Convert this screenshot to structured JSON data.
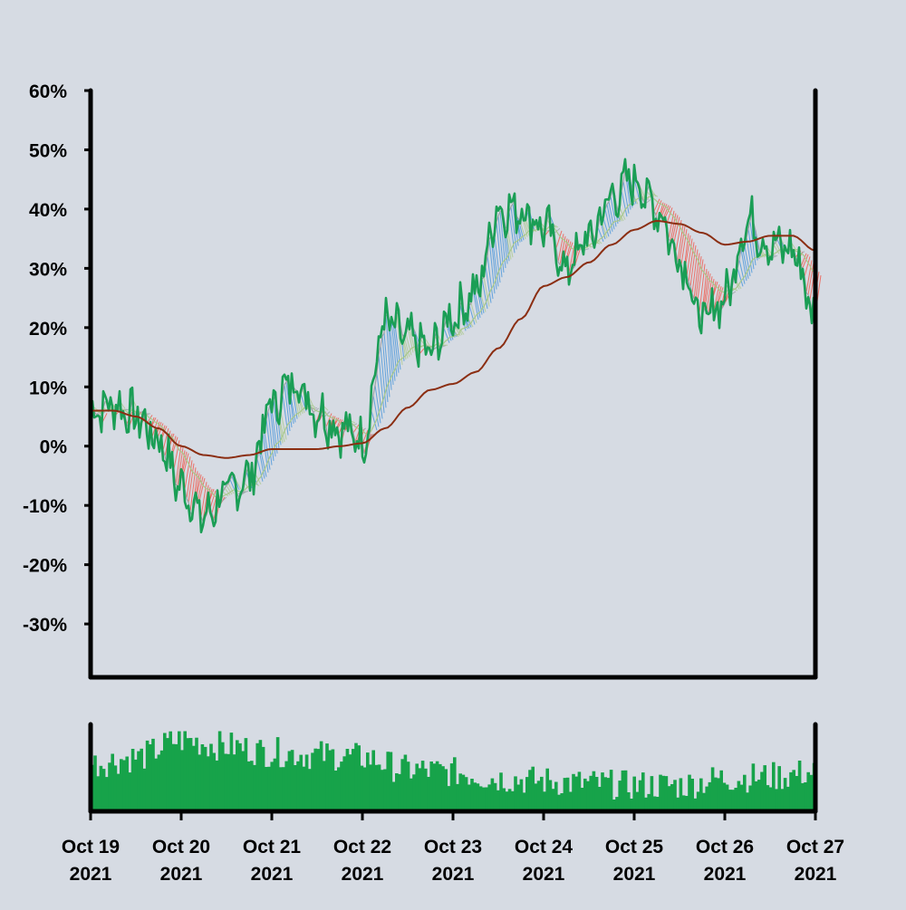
{
  "colors": {
    "background": "#d6dbe3",
    "price_line": "#1a9e55",
    "slow_ma": "#8b2e12",
    "ribbon_up": "#3b8fd9",
    "ribbon_down": "#f24c3d",
    "ribbon_neutral": "#a8c88a",
    "ribbon_gray": "#9aa0a6",
    "volume": "#17a34a"
  },
  "chart_data": [
    {
      "type": "line",
      "panel": "price",
      "title": "",
      "xlabel": "",
      "ylabel": "",
      "ylim": [
        -39,
        60
      ],
      "y_ticks": [
        -30,
        -20,
        -10,
        0,
        10,
        20,
        30,
        40,
        50,
        60
      ],
      "y_tick_labels": [
        "-30%",
        "-20%",
        "-10%",
        "0%",
        "10%",
        "20%",
        "30%",
        "40%",
        "50%",
        "60%"
      ],
      "xlim": [
        "2021-10-19",
        "2021-10-27"
      ],
      "x_ticks": [
        "2021-10-19",
        "2021-10-20",
        "2021-10-21",
        "2021-10-22",
        "2021-10-23",
        "2021-10-24",
        "2021-10-25",
        "2021-10-26",
        "2021-10-27"
      ],
      "x_tick_labels": [
        [
          "Oct 19",
          "2021"
        ],
        [
          "Oct 20",
          "2021"
        ],
        [
          "Oct 21",
          "2021"
        ],
        [
          "Oct 22",
          "2021"
        ],
        [
          "Oct 23",
          "2021"
        ],
        [
          "Oct 24",
          "2021"
        ],
        [
          "Oct 25",
          "2021"
        ],
        [
          "Oct 26",
          "2021"
        ],
        [
          "Oct 27",
          "2021"
        ]
      ],
      "grid": false,
      "legend": "none",
      "series": [
        {
          "role": "price",
          "x": [
            "2021-10-19 00:00",
            "2021-10-19 06:00",
            "2021-10-19 12:00",
            "2021-10-19 18:00",
            "2021-10-20 00:00",
            "2021-10-20 06:00",
            "2021-10-20 12:00",
            "2021-10-20 18:00",
            "2021-10-21 00:00",
            "2021-10-21 06:00",
            "2021-10-21 12:00",
            "2021-10-21 18:00",
            "2021-10-22 00:00",
            "2021-10-22 06:00",
            "2021-10-22 12:00",
            "2021-10-22 18:00",
            "2021-10-23 00:00",
            "2021-10-23 06:00",
            "2021-10-23 12:00",
            "2021-10-23 18:00",
            "2021-10-24 00:00",
            "2021-10-24 06:00",
            "2021-10-24 12:00",
            "2021-10-24 18:00",
            "2021-10-25 00:00",
            "2021-10-25 06:00",
            "2021-10-25 12:00",
            "2021-10-25 18:00",
            "2021-10-26 00:00",
            "2021-10-26 06:00",
            "2021-10-26 12:00",
            "2021-10-26 18:00",
            "2021-10-27 00:00"
          ],
          "values": [
            6,
            7,
            5,
            1,
            -7,
            -12,
            -8,
            -5,
            7,
            11,
            6,
            3,
            1,
            21,
            18,
            16,
            22,
            26,
            40,
            40,
            37,
            30,
            35,
            42,
            45,
            40,
            32,
            21,
            25,
            38,
            34,
            33,
            22
          ]
        },
        {
          "role": "slow_ma",
          "x": [
            "2021-10-19 00:00",
            "2021-10-19 06:00",
            "2021-10-19 12:00",
            "2021-10-19 18:00",
            "2021-10-20 00:00",
            "2021-10-20 06:00",
            "2021-10-20 12:00",
            "2021-10-20 18:00",
            "2021-10-21 00:00",
            "2021-10-21 06:00",
            "2021-10-21 12:00",
            "2021-10-21 18:00",
            "2021-10-22 00:00",
            "2021-10-22 06:00",
            "2021-10-22 12:00",
            "2021-10-22 18:00",
            "2021-10-23 00:00",
            "2021-10-23 06:00",
            "2021-10-23 12:00",
            "2021-10-23 18:00",
            "2021-10-24 00:00",
            "2021-10-24 06:00",
            "2021-10-24 12:00",
            "2021-10-24 18:00",
            "2021-10-25 00:00",
            "2021-10-25 06:00",
            "2021-10-25 12:00",
            "2021-10-25 18:00",
            "2021-10-26 00:00",
            "2021-10-26 06:00",
            "2021-10-26 12:00",
            "2021-10-26 18:00",
            "2021-10-27 00:00"
          ],
          "values": [
            6,
            6,
            5,
            3,
            0,
            -1.5,
            -2,
            -1.5,
            -0.5,
            -0.5,
            -0.5,
            0,
            0.5,
            3,
            6.5,
            9.5,
            10.5,
            12.5,
            16.5,
            21.5,
            27,
            28.5,
            31,
            34,
            36.5,
            38,
            37.5,
            36,
            34,
            34.5,
            35.5,
            35.5,
            33
          ]
        }
      ]
    },
    {
      "type": "bar",
      "panel": "volume",
      "title": "",
      "xlabel": "",
      "ylabel": "",
      "ylim": [
        0,
        1
      ],
      "xlim": [
        "2021-10-19",
        "2021-10-27"
      ],
      "grid": false,
      "legend": "none",
      "series": [
        {
          "role": "volume",
          "x": [
            "2021-10-19 00:00",
            "2021-10-19 12:00",
            "2021-10-20 00:00",
            "2021-10-20 12:00",
            "2021-10-21 00:00",
            "2021-10-21 12:00",
            "2021-10-22 00:00",
            "2021-10-22 12:00",
            "2021-10-23 00:00",
            "2021-10-23 12:00",
            "2021-10-24 00:00",
            "2021-10-24 12:00",
            "2021-10-25 00:00",
            "2021-10-25 12:00",
            "2021-10-26 00:00",
            "2021-10-26 12:00",
            "2021-10-27 00:00"
          ],
          "values": [
            0.55,
            0.62,
            0.82,
            0.75,
            0.68,
            0.65,
            0.62,
            0.48,
            0.45,
            0.38,
            0.35,
            0.32,
            0.3,
            0.3,
            0.38,
            0.4,
            0.45
          ]
        }
      ]
    }
  ]
}
